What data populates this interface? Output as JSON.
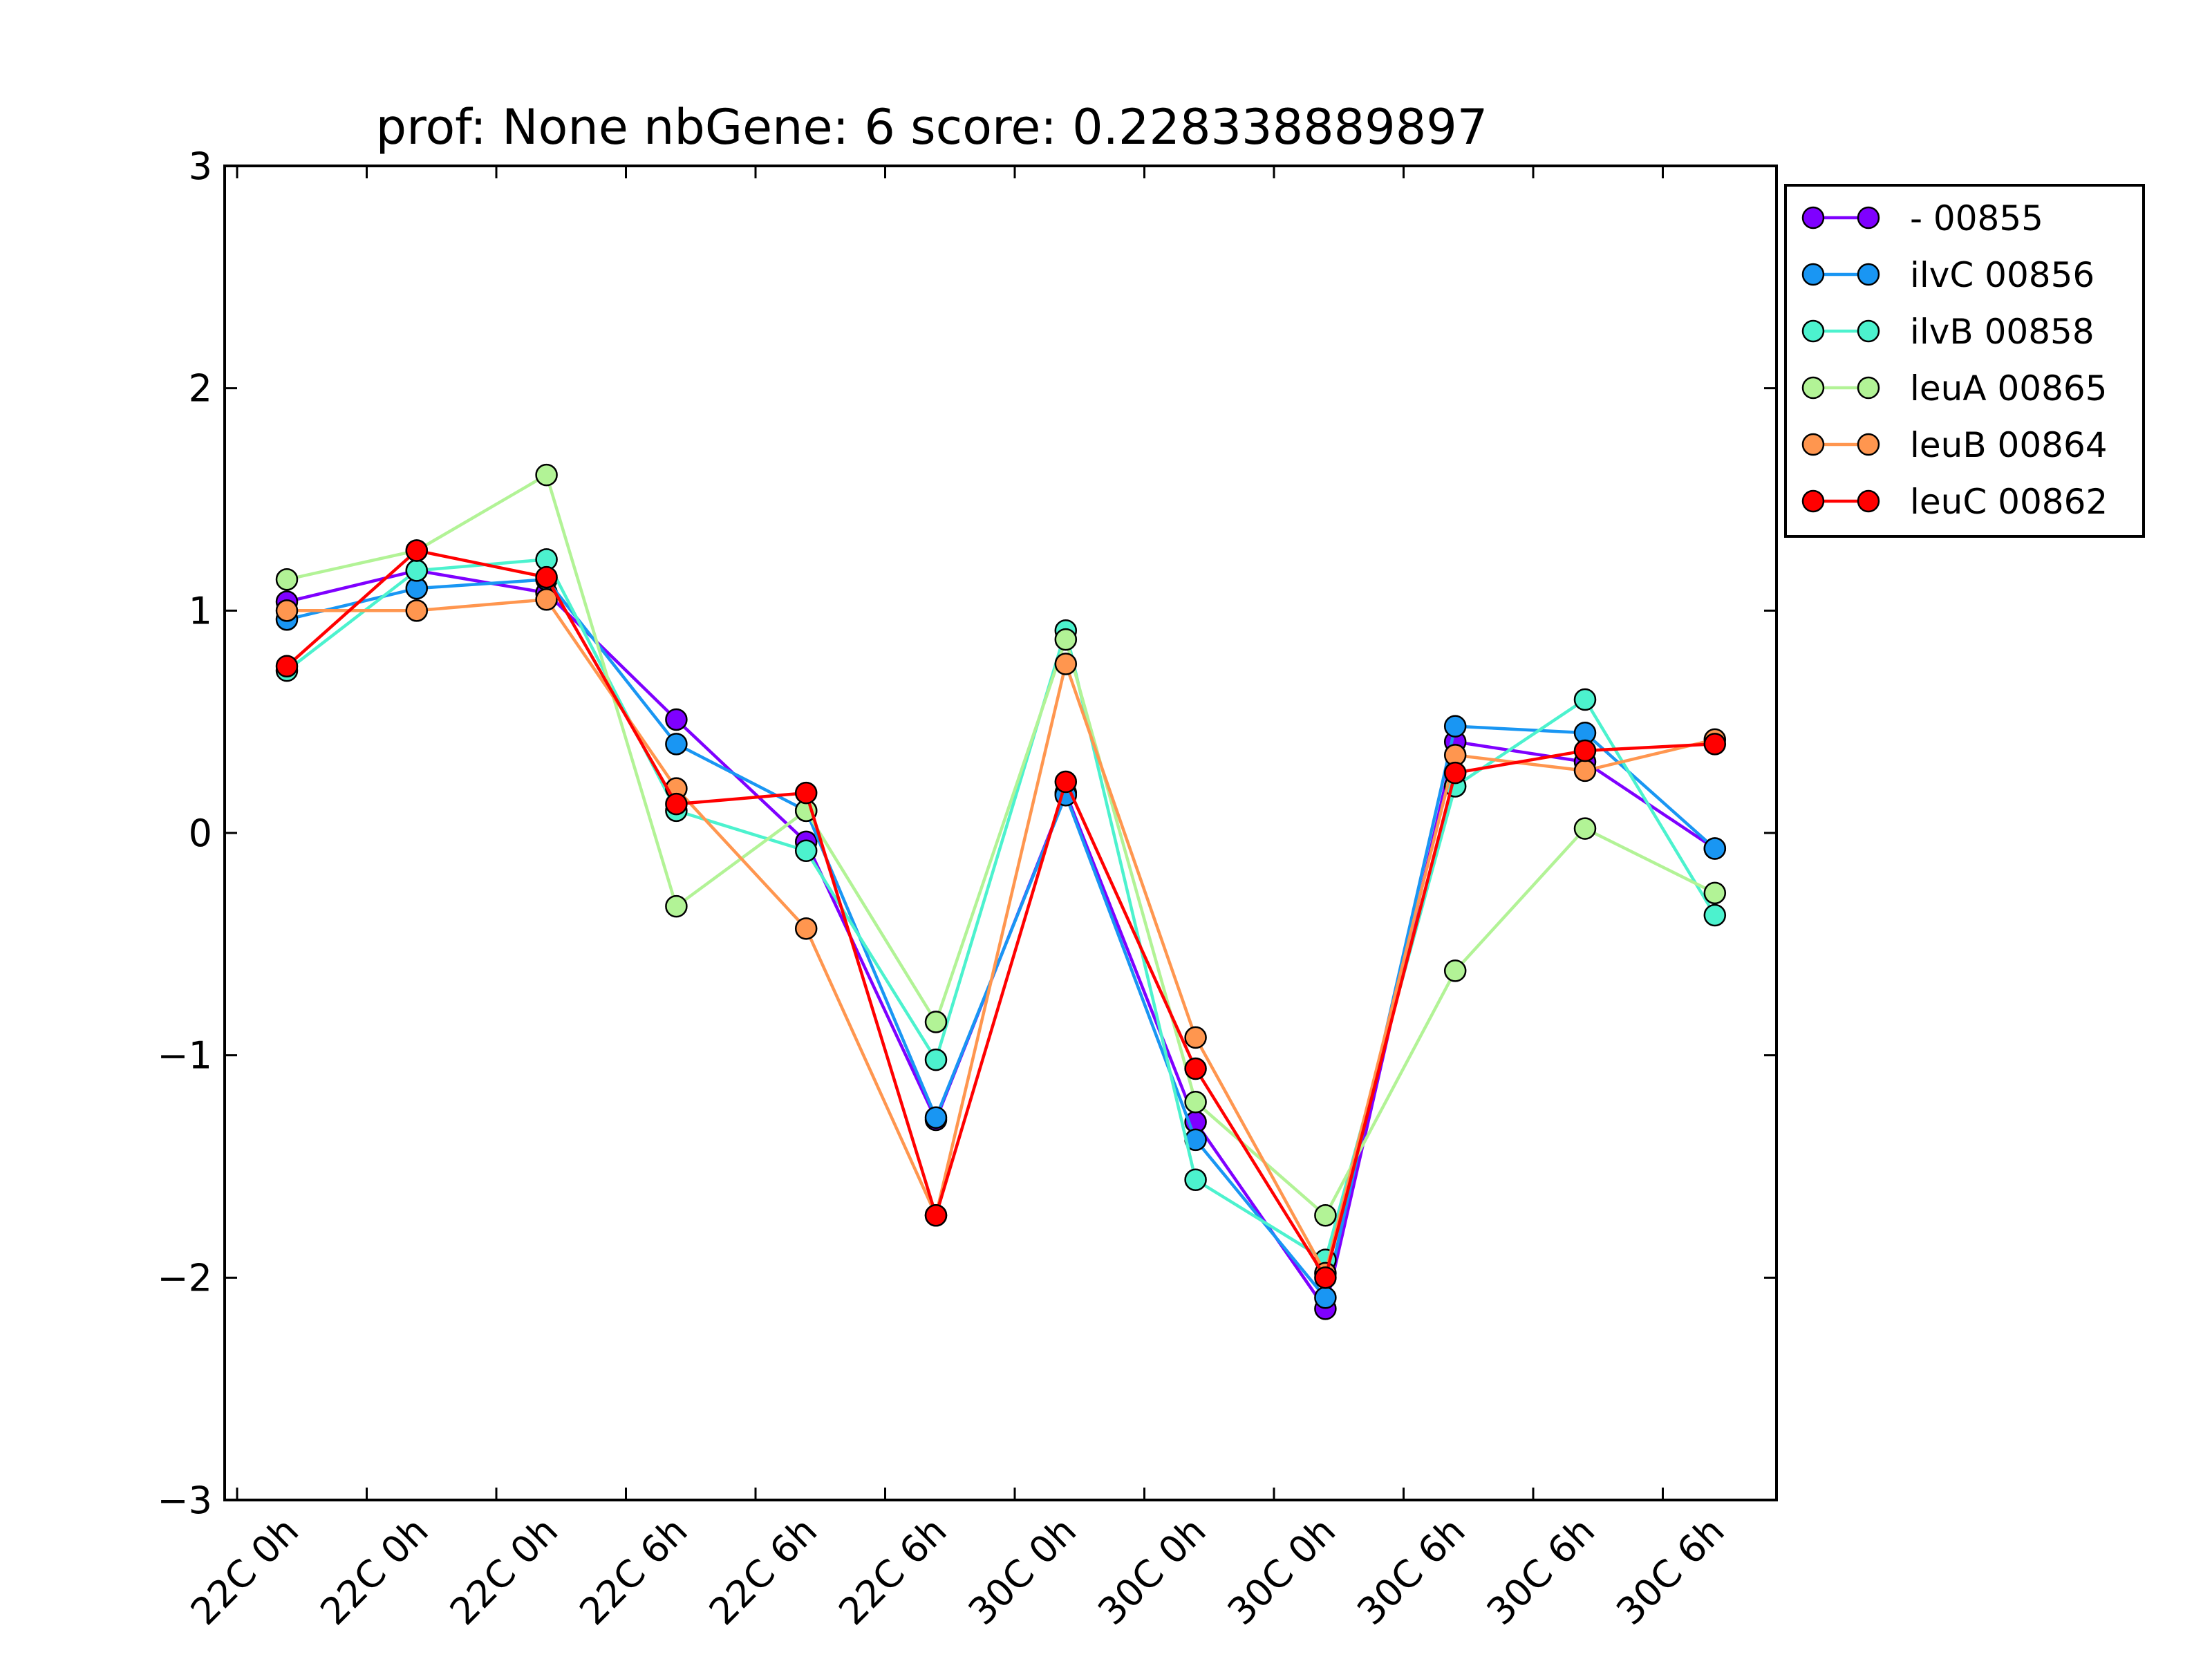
{
  "chart_data": {
    "type": "line",
    "title": "prof: None nbGene: 6 score: 0.228338889897",
    "xlabel": "",
    "ylabel": "",
    "categories": [
      "22C 0h",
      "22C 0h",
      "22C 0h",
      "22C 6h",
      "22C 6h",
      "22C 6h",
      "30C 0h",
      "30C 0h",
      "30C 0h",
      "30C 6h",
      "30C 6h",
      "30C 6h"
    ],
    "ylim": [
      -3,
      3
    ],
    "yticks": [
      "−3",
      "−2",
      "−1",
      "0",
      "1",
      "2",
      "3"
    ],
    "legend_position": "outside-top-right",
    "grid": false,
    "series": [
      {
        "name": "- 00855",
        "color": "#7f00ff",
        "values": [
          1.04,
          1.18,
          1.08,
          0.51,
          -0.04,
          -1.29,
          0.18,
          -1.3,
          -2.14,
          0.41,
          0.32,
          -0.07
        ]
      },
      {
        "name": "ilvC 00856",
        "color": "#1996f3",
        "values": [
          0.96,
          1.1,
          1.14,
          0.4,
          0.1,
          -1.28,
          0.17,
          -1.38,
          -2.09,
          0.48,
          0.45,
          -0.07
        ]
      },
      {
        "name": "ilvB 00858",
        "color": "#4cf2ce",
        "values": [
          0.73,
          1.18,
          1.23,
          0.1,
          -0.08,
          -1.02,
          0.91,
          -1.56,
          -1.92,
          0.21,
          0.6,
          -0.37
        ]
      },
      {
        "name": "leuA 00865",
        "color": "#b2f396",
        "values": [
          1.14,
          1.27,
          1.61,
          -0.33,
          0.1,
          -0.85,
          0.87,
          -1.21,
          -1.72,
          -0.62,
          0.02,
          -0.27
        ]
      },
      {
        "name": "leuB 00864",
        "color": "#ff964f",
        "values": [
          1.0,
          1.0,
          1.05,
          0.2,
          -0.43,
          -1.72,
          0.76,
          -0.92,
          -1.98,
          0.35,
          0.28,
          0.42
        ]
      },
      {
        "name": "leuC 00862",
        "color": "#ff0000",
        "values": [
          0.75,
          1.27,
          1.15,
          0.13,
          0.18,
          -1.72,
          0.23,
          -1.06,
          -2.0,
          0.27,
          0.37,
          0.4
        ]
      }
    ]
  }
}
